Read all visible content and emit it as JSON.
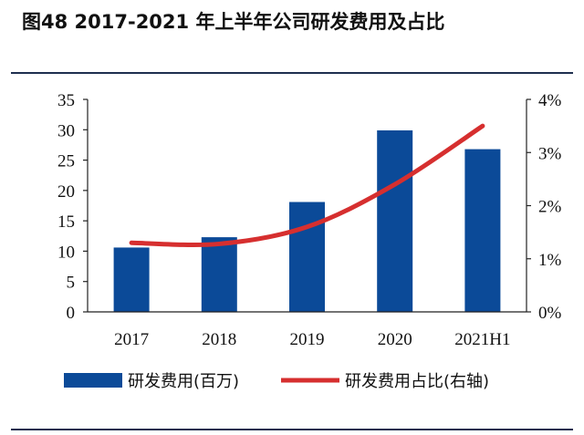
{
  "figure": {
    "title": "图48  2017-2021 年上半年公司研发费用及占比"
  },
  "chart_data": {
    "type": "bar",
    "categories": [
      "2017",
      "2018",
      "2019",
      "2020",
      "2021H1"
    ],
    "series": [
      {
        "name": "研发费用(百万)",
        "kind": "bar",
        "axis": "left",
        "color": "#0b4a98",
        "values": [
          10.6,
          12.3,
          18.1,
          29.9,
          26.8
        ]
      },
      {
        "name": "研发费用占比(右轴)",
        "kind": "line",
        "axis": "right",
        "color": "#d62f2f",
        "values": [
          1.3,
          1.28,
          1.6,
          2.4,
          3.5
        ]
      }
    ],
    "left_axis": {
      "min": 0,
      "max": 35,
      "ticks": [
        0,
        5,
        10,
        15,
        20,
        25,
        30,
        35
      ]
    },
    "right_axis": {
      "min": 0,
      "max": 4,
      "ticks": [
        "0%",
        "1%",
        "2%",
        "3%",
        "4%"
      ],
      "unit": "%"
    },
    "grid": false,
    "legend_position": "bottom"
  }
}
